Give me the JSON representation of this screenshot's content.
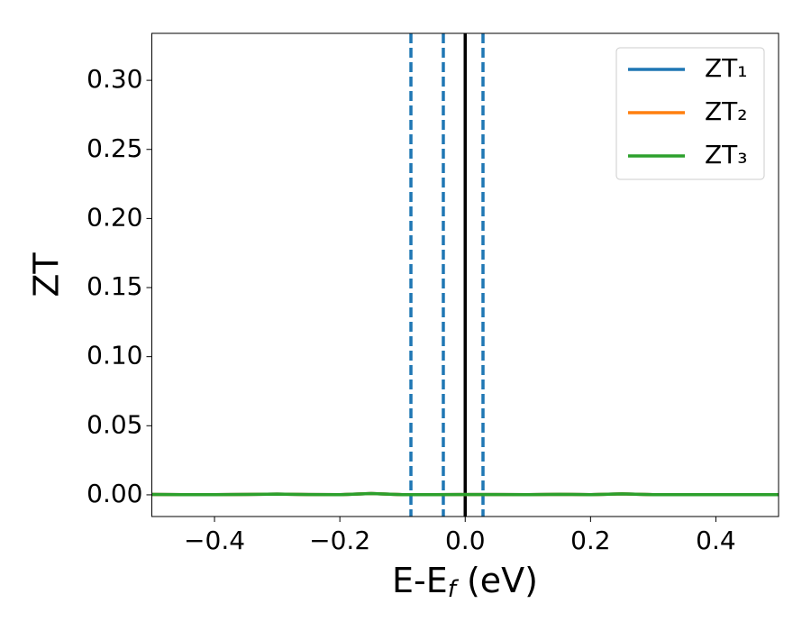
{
  "chart_data": {
    "type": "line",
    "xlabel": [
      "E-E",
      "f",
      " (eV)"
    ],
    "ylabel": "ZT",
    "x": [
      -0.5,
      -0.45,
      -0.4,
      -0.35,
      -0.3,
      -0.25,
      -0.2,
      -0.15,
      -0.1,
      -0.05,
      0.0,
      0.05,
      0.1,
      0.15,
      0.2,
      0.25,
      0.3,
      0.35,
      0.4,
      0.45,
      0.5
    ],
    "series": [
      {
        "name": "ZT₁",
        "color": "#1f77b4",
        "values": [
          0.0003,
          0.0001,
          0.0001,
          0.0003,
          0.0005,
          0.0002,
          0.0001,
          0.0009,
          0.0001,
          0.0001,
          0.0002,
          0.0002,
          0.0001,
          0.0004,
          0.0001,
          0.0007,
          0.0001,
          0.0001,
          0.0001,
          0.0001,
          0.0001
        ]
      },
      {
        "name": "ZT₂",
        "color": "#ff7f0e",
        "values": [
          0.0003,
          0.0001,
          0.0001,
          0.0003,
          0.0005,
          0.0002,
          0.0001,
          0.0009,
          0.0001,
          0.0001,
          0.0002,
          0.0002,
          0.0001,
          0.0004,
          0.0001,
          0.0007,
          0.0001,
          0.0001,
          0.0001,
          0.0001,
          0.0001
        ]
      },
      {
        "name": "ZT₃",
        "color": "#2ca02c",
        "values": [
          0.0003,
          0.0001,
          0.0001,
          0.0003,
          0.0005,
          0.0002,
          0.0001,
          0.0009,
          0.0001,
          0.0001,
          0.0002,
          0.0002,
          0.0001,
          0.0004,
          0.0001,
          0.0007,
          0.0001,
          0.0001,
          0.0001,
          0.0001,
          0.0001
        ]
      }
    ],
    "vlines": [
      {
        "x": -0.0866,
        "color": "#1f77b4",
        "style": "dashed"
      },
      {
        "x": -0.0349,
        "color": "#1f77b4",
        "style": "dashed"
      },
      {
        "x": 0.0284,
        "color": "#1f77b4",
        "style": "dashed"
      },
      {
        "x": 0,
        "color": "#000000",
        "style": "solid"
      }
    ],
    "xlim": [
      -0.5,
      0.5
    ],
    "ylim": [
      -0.0157,
      0.334
    ],
    "xticks": [
      {
        "value": -0.4,
        "label": "−0.4"
      },
      {
        "value": -0.2,
        "label": "−0.2"
      },
      {
        "value": 0,
        "label": "0.0"
      },
      0.2,
      0.4
    ],
    "yticks": [
      {
        "value": 0,
        "label": "0.00"
      },
      0.05,
      {
        "value": 0.1,
        "label": "0.10"
      },
      0.15,
      {
        "value": 0.2,
        "label": "0.20"
      },
      0.25,
      {
        "value": 0.3,
        "label": "0.30"
      }
    ],
    "legend": "upper right",
    "grid": false
  }
}
